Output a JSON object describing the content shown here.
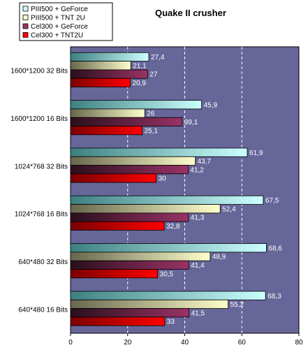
{
  "chart_data": {
    "type": "bar",
    "orientation": "horizontal",
    "title": "Quake II crusher",
    "categories": [
      "1600*1200 32 Bits",
      "1600*1200 16 Bits",
      "1024*768 32 Bits",
      "1024*768 16 Bits",
      "640*480 32 Bits",
      "640*480 16 Bits"
    ],
    "series": [
      {
        "name": "PIII500 + GeForce",
        "color": "#ccffff",
        "values": [
          27.4,
          45.9,
          61.9,
          67.5,
          68.6,
          68.3
        ],
        "labels": [
          "27,4",
          "45,9",
          "61,9",
          "67,5",
          "68,6",
          "68,3"
        ]
      },
      {
        "name": "PIII500 + TNT 2U",
        "color": "#ffffcc",
        "values": [
          21.1,
          26,
          43.7,
          52.4,
          48.9,
          55.2
        ],
        "labels": [
          "21,1",
          "26",
          "43,7",
          "52,4",
          "48,9",
          "55,2"
        ]
      },
      {
        "name": "Cel300 + GeForce",
        "color": "#993366",
        "values": [
          27,
          39.1,
          41.2,
          41.3,
          41.4,
          41.5
        ],
        "labels": [
          "27",
          "39,1",
          "41,2",
          "41,3",
          "41,4",
          "41,5"
        ]
      },
      {
        "name": "Cel300 + TNT2U",
        "color": "#ff0000",
        "values": [
          20.9,
          25.1,
          30,
          32.8,
          30.5,
          33
        ],
        "labels": [
          "20,9",
          "25,1",
          "30",
          "32,8",
          "30,5",
          "33"
        ]
      }
    ],
    "xlim": [
      0,
      80
    ],
    "xticks": [
      0,
      20,
      40,
      60,
      80
    ],
    "grid": "vertical dashed",
    "legend_position": "top-left",
    "plot_background": "#666699"
  }
}
